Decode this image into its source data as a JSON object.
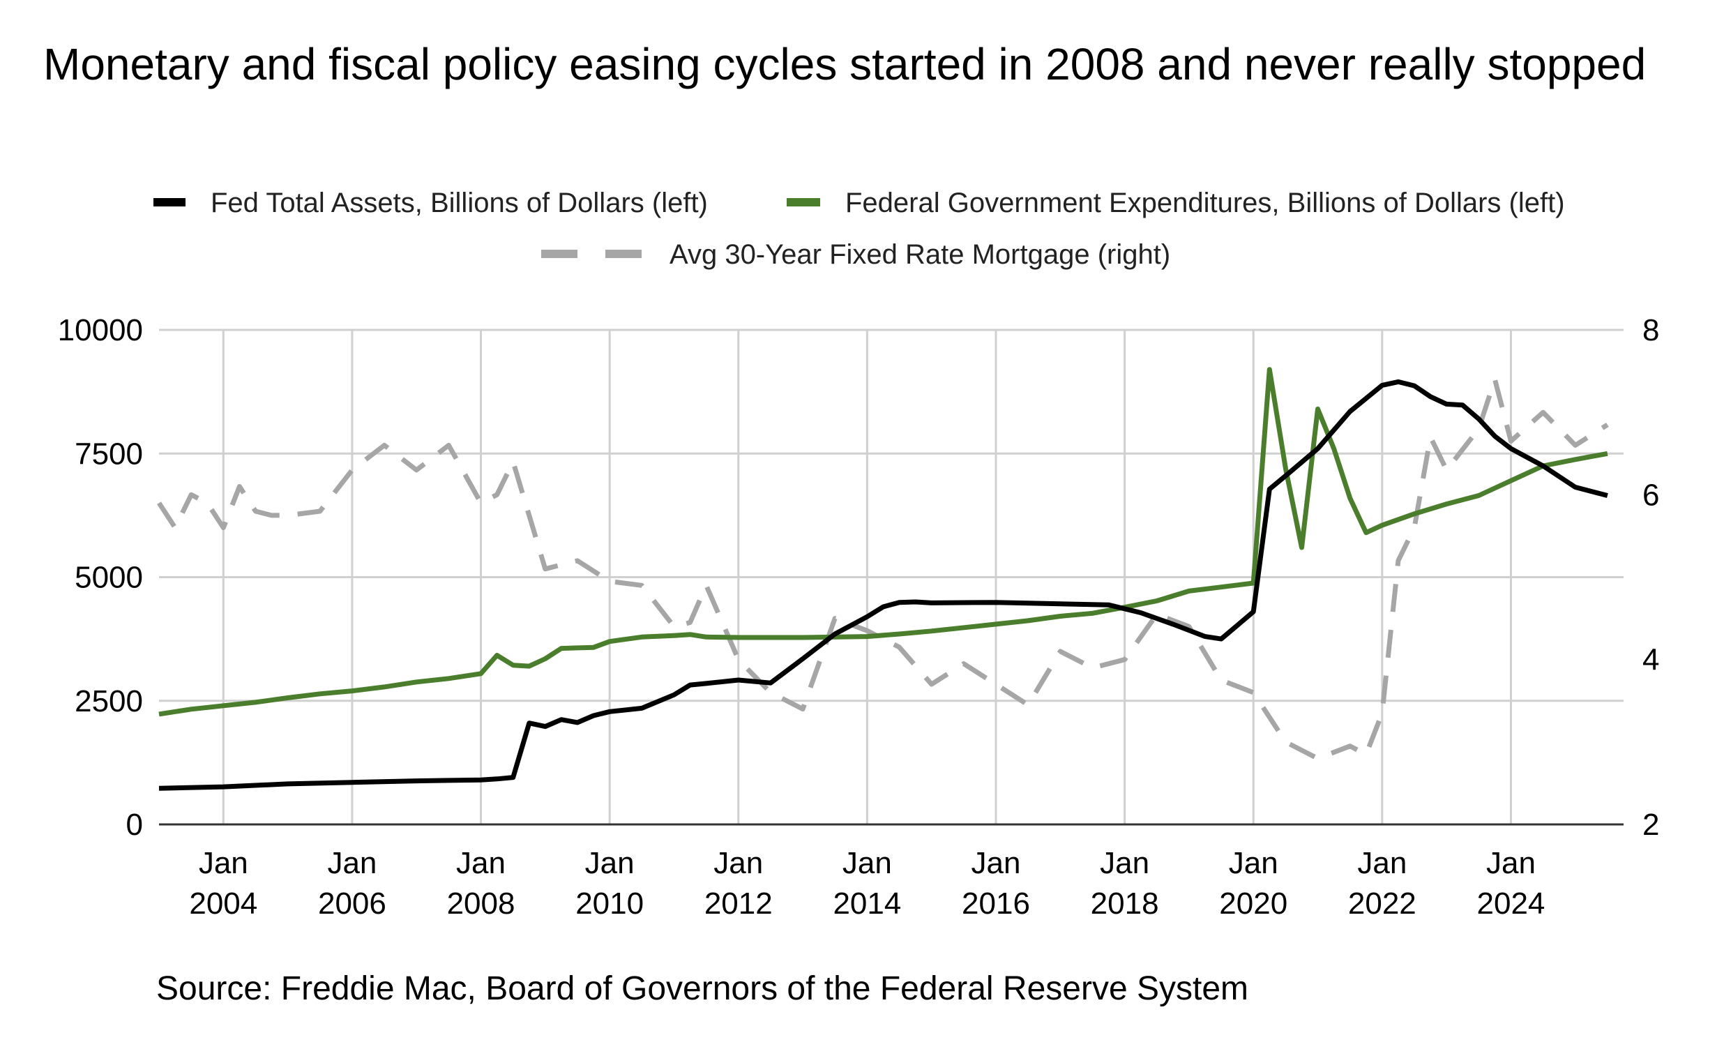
{
  "chart_data": {
    "type": "line",
    "title": "Monetary and fiscal policy easing cycles started in 2008 and never really stopped",
    "source": "Source: Freddie Mac, Board of Governors of the Federal Reserve System",
    "legend_placement": "top",
    "x_range": [
      2003.0,
      2025.75
    ],
    "x_ticks": [
      {
        "x": 2004,
        "line1": "Jan",
        "line2": "2004"
      },
      {
        "x": 2006,
        "line1": "Jan",
        "line2": "2006"
      },
      {
        "x": 2008,
        "line1": "Jan",
        "line2": "2008"
      },
      {
        "x": 2010,
        "line1": "Jan",
        "line2": "2010"
      },
      {
        "x": 2012,
        "line1": "Jan",
        "line2": "2012"
      },
      {
        "x": 2014,
        "line1": "Jan",
        "line2": "2014"
      },
      {
        "x": 2016,
        "line1": "Jan",
        "line2": "2016"
      },
      {
        "x": 2018,
        "line1": "Jan",
        "line2": "2018"
      },
      {
        "x": 2020,
        "line1": "Jan",
        "line2": "2020"
      },
      {
        "x": 2022,
        "line1": "Jan",
        "line2": "2022"
      },
      {
        "x": 2024,
        "line1": "Jan",
        "line2": "2024"
      }
    ],
    "y_left": {
      "range": [
        0,
        10000
      ],
      "ticks": [
        0,
        2500,
        5000,
        7500,
        10000
      ]
    },
    "y_right": {
      "range": [
        2,
        8
      ],
      "ticks": [
        2,
        4,
        6,
        8
      ]
    },
    "grid": true,
    "series": [
      {
        "name": "Fed Total Assets, Billions of Dollars (left)",
        "axis": "left",
        "color": "#000000",
        "dash": "solid",
        "x": [
          2003.0,
          2004.0,
          2005.0,
          2006.0,
          2007.0,
          2008.0,
          2008.25,
          2008.5,
          2008.75,
          2009.0,
          2009.25,
          2009.5,
          2009.75,
          2010.0,
          2010.5,
          2011.0,
          2011.25,
          2011.5,
          2012.0,
          2012.5,
          2013.0,
          2013.5,
          2014.0,
          2014.25,
          2014.5,
          2014.75,
          2015.0,
          2016.0,
          2017.0,
          2017.75,
          2018.25,
          2018.75,
          2019.25,
          2019.5,
          2020.0,
          2020.25,
          2020.5,
          2021.0,
          2021.5,
          2022.0,
          2022.25,
          2022.5,
          2022.75,
          2023.0,
          2023.25,
          2023.5,
          2023.75,
          2024.0,
          2024.5,
          2025.0,
          2025.5
        ],
        "values": [
          730,
          760,
          820,
          850,
          880,
          900,
          920,
          950,
          2050,
          1980,
          2120,
          2060,
          2200,
          2280,
          2350,
          2620,
          2820,
          2850,
          2920,
          2860,
          3350,
          3850,
          4200,
          4400,
          4490,
          4500,
          4480,
          4490,
          4460,
          4440,
          4280,
          4050,
          3800,
          3750,
          4300,
          6780,
          7050,
          7600,
          8350,
          8880,
          8950,
          8870,
          8650,
          8500,
          8480,
          8200,
          7850,
          7600,
          7250,
          6820,
          6650
        ]
      },
      {
        "name": "Federal Government Expenditures, Billions of Dollars (left)",
        "axis": "left",
        "color": "#4a7e2c",
        "dash": "solid",
        "x": [
          2003.0,
          2003.5,
          2004.0,
          2004.5,
          2005.0,
          2005.5,
          2006.0,
          2006.5,
          2007.0,
          2007.5,
          2008.0,
          2008.25,
          2008.5,
          2008.75,
          2009.0,
          2009.25,
          2009.5,
          2009.75,
          2010.0,
          2010.5,
          2011.0,
          2011.25,
          2011.5,
          2012.0,
          2013.0,
          2014.0,
          2014.5,
          2015.0,
          2016.0,
          2016.5,
          2017.0,
          2017.5,
          2018.0,
          2018.5,
          2019.0,
          2019.5,
          2020.0,
          2020.25,
          2020.5,
          2020.75,
          2021.0,
          2021.25,
          2021.5,
          2021.75,
          2022.0,
          2022.5,
          2023.0,
          2023.5,
          2024.0,
          2024.5,
          2025.0,
          2025.5
        ],
        "values": [
          2230,
          2330,
          2400,
          2470,
          2560,
          2640,
          2700,
          2780,
          2880,
          2950,
          3050,
          3420,
          3220,
          3200,
          3350,
          3560,
          3570,
          3580,
          3700,
          3790,
          3820,
          3840,
          3790,
          3780,
          3780,
          3800,
          3850,
          3910,
          4050,
          4120,
          4210,
          4270,
          4390,
          4520,
          4720,
          4800,
          4880,
          9200,
          7200,
          5600,
          8400,
          7600,
          6600,
          5900,
          6050,
          6280,
          6480,
          6650,
          6950,
          7250,
          7380,
          7500
        ]
      },
      {
        "name": "Avg 30-Year Fixed Rate Mortgage (right)",
        "axis": "right",
        "color": "#a6a6a6",
        "dash": "dashed",
        "x": [
          2003.0,
          2003.25,
          2003.5,
          2003.75,
          2004.0,
          2004.25,
          2004.5,
          2004.75,
          2005.0,
          2005.5,
          2006.0,
          2006.5,
          2007.0,
          2007.5,
          2008.0,
          2008.25,
          2008.5,
          2009.0,
          2009.5,
          2010.0,
          2010.5,
          2011.0,
          2011.25,
          2011.5,
          2012.0,
          2012.5,
          2013.0,
          2013.5,
          2014.0,
          2014.5,
          2015.0,
          2015.5,
          2016.0,
          2016.5,
          2017.0,
          2017.5,
          2018.0,
          2018.5,
          2019.0,
          2019.5,
          2020.0,
          2020.5,
          2021.0,
          2021.5,
          2021.75,
          2022.0,
          2022.25,
          2022.5,
          2022.75,
          2023.0,
          2023.5,
          2023.75,
          2024.0,
          2024.5,
          2025.0,
          2025.5
        ],
        "values": [
          5.9,
          5.6,
          6.0,
          5.9,
          5.6,
          6.1,
          5.8,
          5.75,
          5.75,
          5.8,
          6.3,
          6.6,
          6.3,
          6.6,
          5.9,
          6.0,
          6.4,
          5.1,
          5.2,
          4.95,
          4.9,
          4.4,
          4.45,
          4.9,
          4.0,
          3.6,
          3.4,
          4.5,
          4.35,
          4.15,
          3.7,
          3.95,
          3.7,
          3.45,
          4.1,
          3.9,
          4.0,
          4.55,
          4.4,
          3.75,
          3.6,
          3.0,
          2.8,
          2.95,
          2.85,
          3.35,
          5.2,
          5.6,
          6.7,
          6.3,
          6.8,
          7.4,
          6.65,
          7.0,
          6.6,
          6.85
        ]
      }
    ]
  }
}
